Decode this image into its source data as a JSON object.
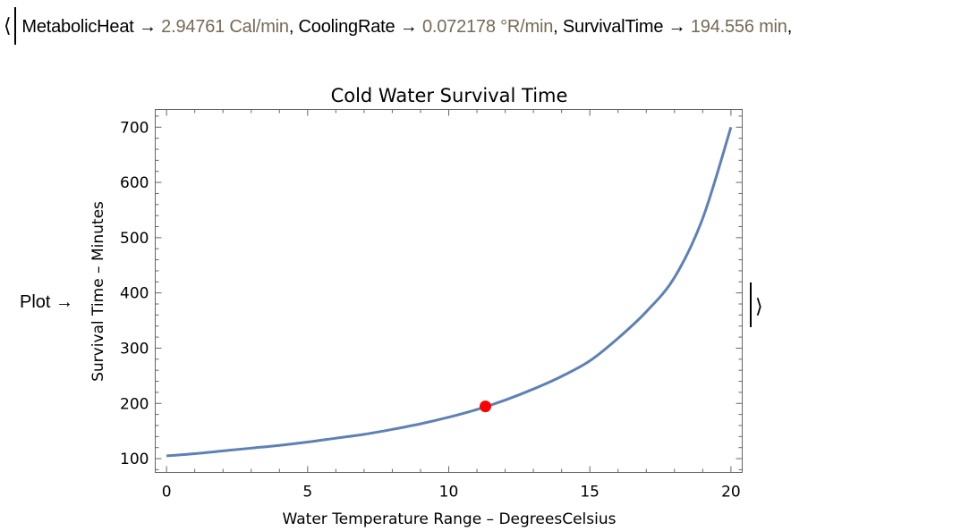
{
  "association": {
    "open_bracket": "⟨",
    "entries": [
      {
        "key": "MetabolicHeat",
        "arrow": "→",
        "value": "2.94761 Cal/min"
      },
      {
        "key": "CoolingRate",
        "arrow": "→",
        "value": "0.072178 °R/min"
      },
      {
        "key": "SurvivalTime",
        "arrow": "→",
        "value": "194.556 min"
      }
    ],
    "separator": ",",
    "plot_key": "Plot →",
    "close_bracket": "⟩"
  },
  "colors": {
    "curve": "#5e81b5",
    "point": "#ff0000",
    "frame": "#666666",
    "quantity": "#766955"
  },
  "chart_data": {
    "type": "line",
    "title": "Cold Water Survival Time",
    "xlabel": "Water Temperature Range – DegreesCelsius",
    "ylabel": "Survival Time – Minutes",
    "xlim": [
      -0.4,
      20.4
    ],
    "ylim": [
      75,
      732
    ],
    "x_ticks": [
      0,
      5,
      10,
      15,
      20
    ],
    "y_ticks": [
      100,
      200,
      300,
      400,
      500,
      600,
      700
    ],
    "series": [
      {
        "name": "survival time",
        "x": [
          0,
          1,
          2,
          3,
          4,
          5,
          6,
          7,
          8,
          9,
          10,
          11,
          12,
          13,
          14,
          15,
          16,
          17,
          18,
          19,
          20
        ],
        "y": [
          105,
          109,
          114,
          119,
          124,
          130,
          137,
          144,
          153,
          163,
          175,
          189,
          206,
          226,
          249,
          277,
          318,
          366,
          428,
          535,
          700
        ]
      }
    ],
    "highlight_point": {
      "x": 11.3,
      "y": 194.556
    }
  }
}
